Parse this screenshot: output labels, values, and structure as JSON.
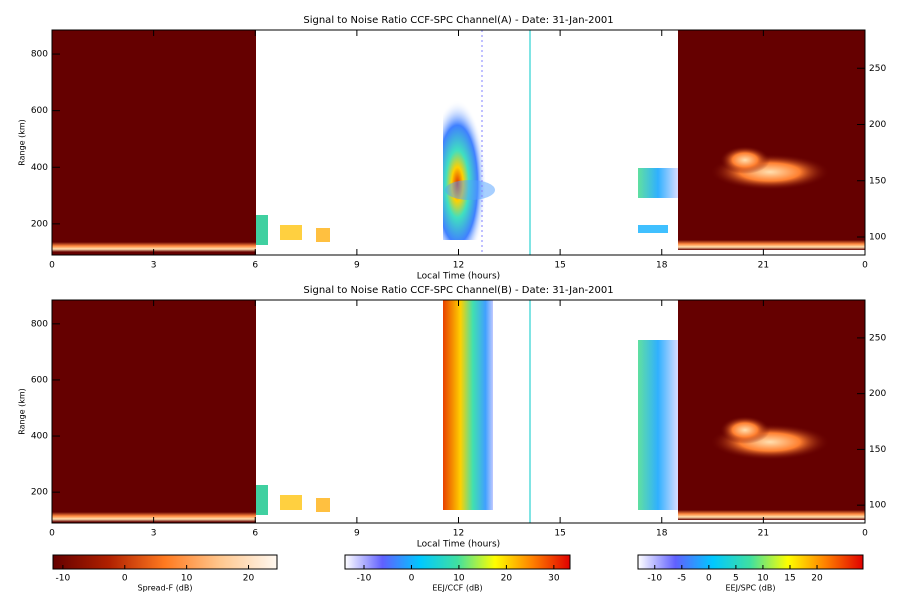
{
  "chart_data": [
    {
      "type": "heatmap",
      "title": "Signal to Noise Ratio CCF-SPC Channel(A) - Date: 31-Jan-2001",
      "xlabel": "Local Time (hours)",
      "ylabel": "Range (km)",
      "xlim": [
        0,
        24
      ],
      "xticks": [
        0,
        3,
        6,
        9,
        12,
        15,
        18,
        21,
        {
          "value": 24,
          "label": "0"
        }
      ],
      "ylim": [
        90,
        885
      ],
      "yticks": [
        200,
        400,
        600,
        800
      ],
      "y2lim": [
        84,
        284
      ],
      "y2ticks": [
        100,
        150,
        200,
        250
      ]
    },
    {
      "type": "heatmap",
      "title": "Signal to Noise Ratio CCF-SPC Channel(B) - Date: 31-Jan-2001",
      "xlabel": "Local Time (hours)",
      "ylabel": "Range (km)",
      "xlim": [
        0,
        24
      ],
      "xticks": [
        0,
        3,
        6,
        9,
        12,
        15,
        18,
        21,
        {
          "value": 24,
          "label": "0"
        }
      ],
      "ylim": [
        90,
        885
      ],
      "yticks": [
        200,
        400,
        600,
        800
      ],
      "y2lim": [
        84,
        284
      ],
      "y2ticks": [
        100,
        150,
        200,
        250
      ]
    }
  ],
  "colorbars": [
    {
      "label": "Spread-F (dB)",
      "lim": [
        -11.6,
        24.6
      ],
      "ticks": [
        -10,
        0,
        10,
        20
      ],
      "palette": [
        "#650000",
        "#b02000",
        "#ff7a20",
        "#ffc890",
        "#fff8f0"
      ]
    },
    {
      "label": "EEJ/CCF (dB)",
      "lim": [
        -14,
        33.4
      ],
      "ticks": [
        -10,
        0,
        10,
        20,
        30
      ],
      "palette": [
        "#ffffff",
        "#6060ff",
        "#00c8ff",
        "#40e0a0",
        "#ffff00",
        "#ff8000",
        "#e00000"
      ]
    },
    {
      "label": "EEJ/SPC (dB)",
      "lim": [
        -13.1,
        28.5
      ],
      "ticks": [
        -10,
        -5,
        0,
        5,
        10,
        15,
        20
      ],
      "palette": [
        "#ffffff",
        "#6060ff",
        "#00c8ff",
        "#40e0a0",
        "#ffff00",
        "#ff8000",
        "#e00000"
      ]
    }
  ]
}
